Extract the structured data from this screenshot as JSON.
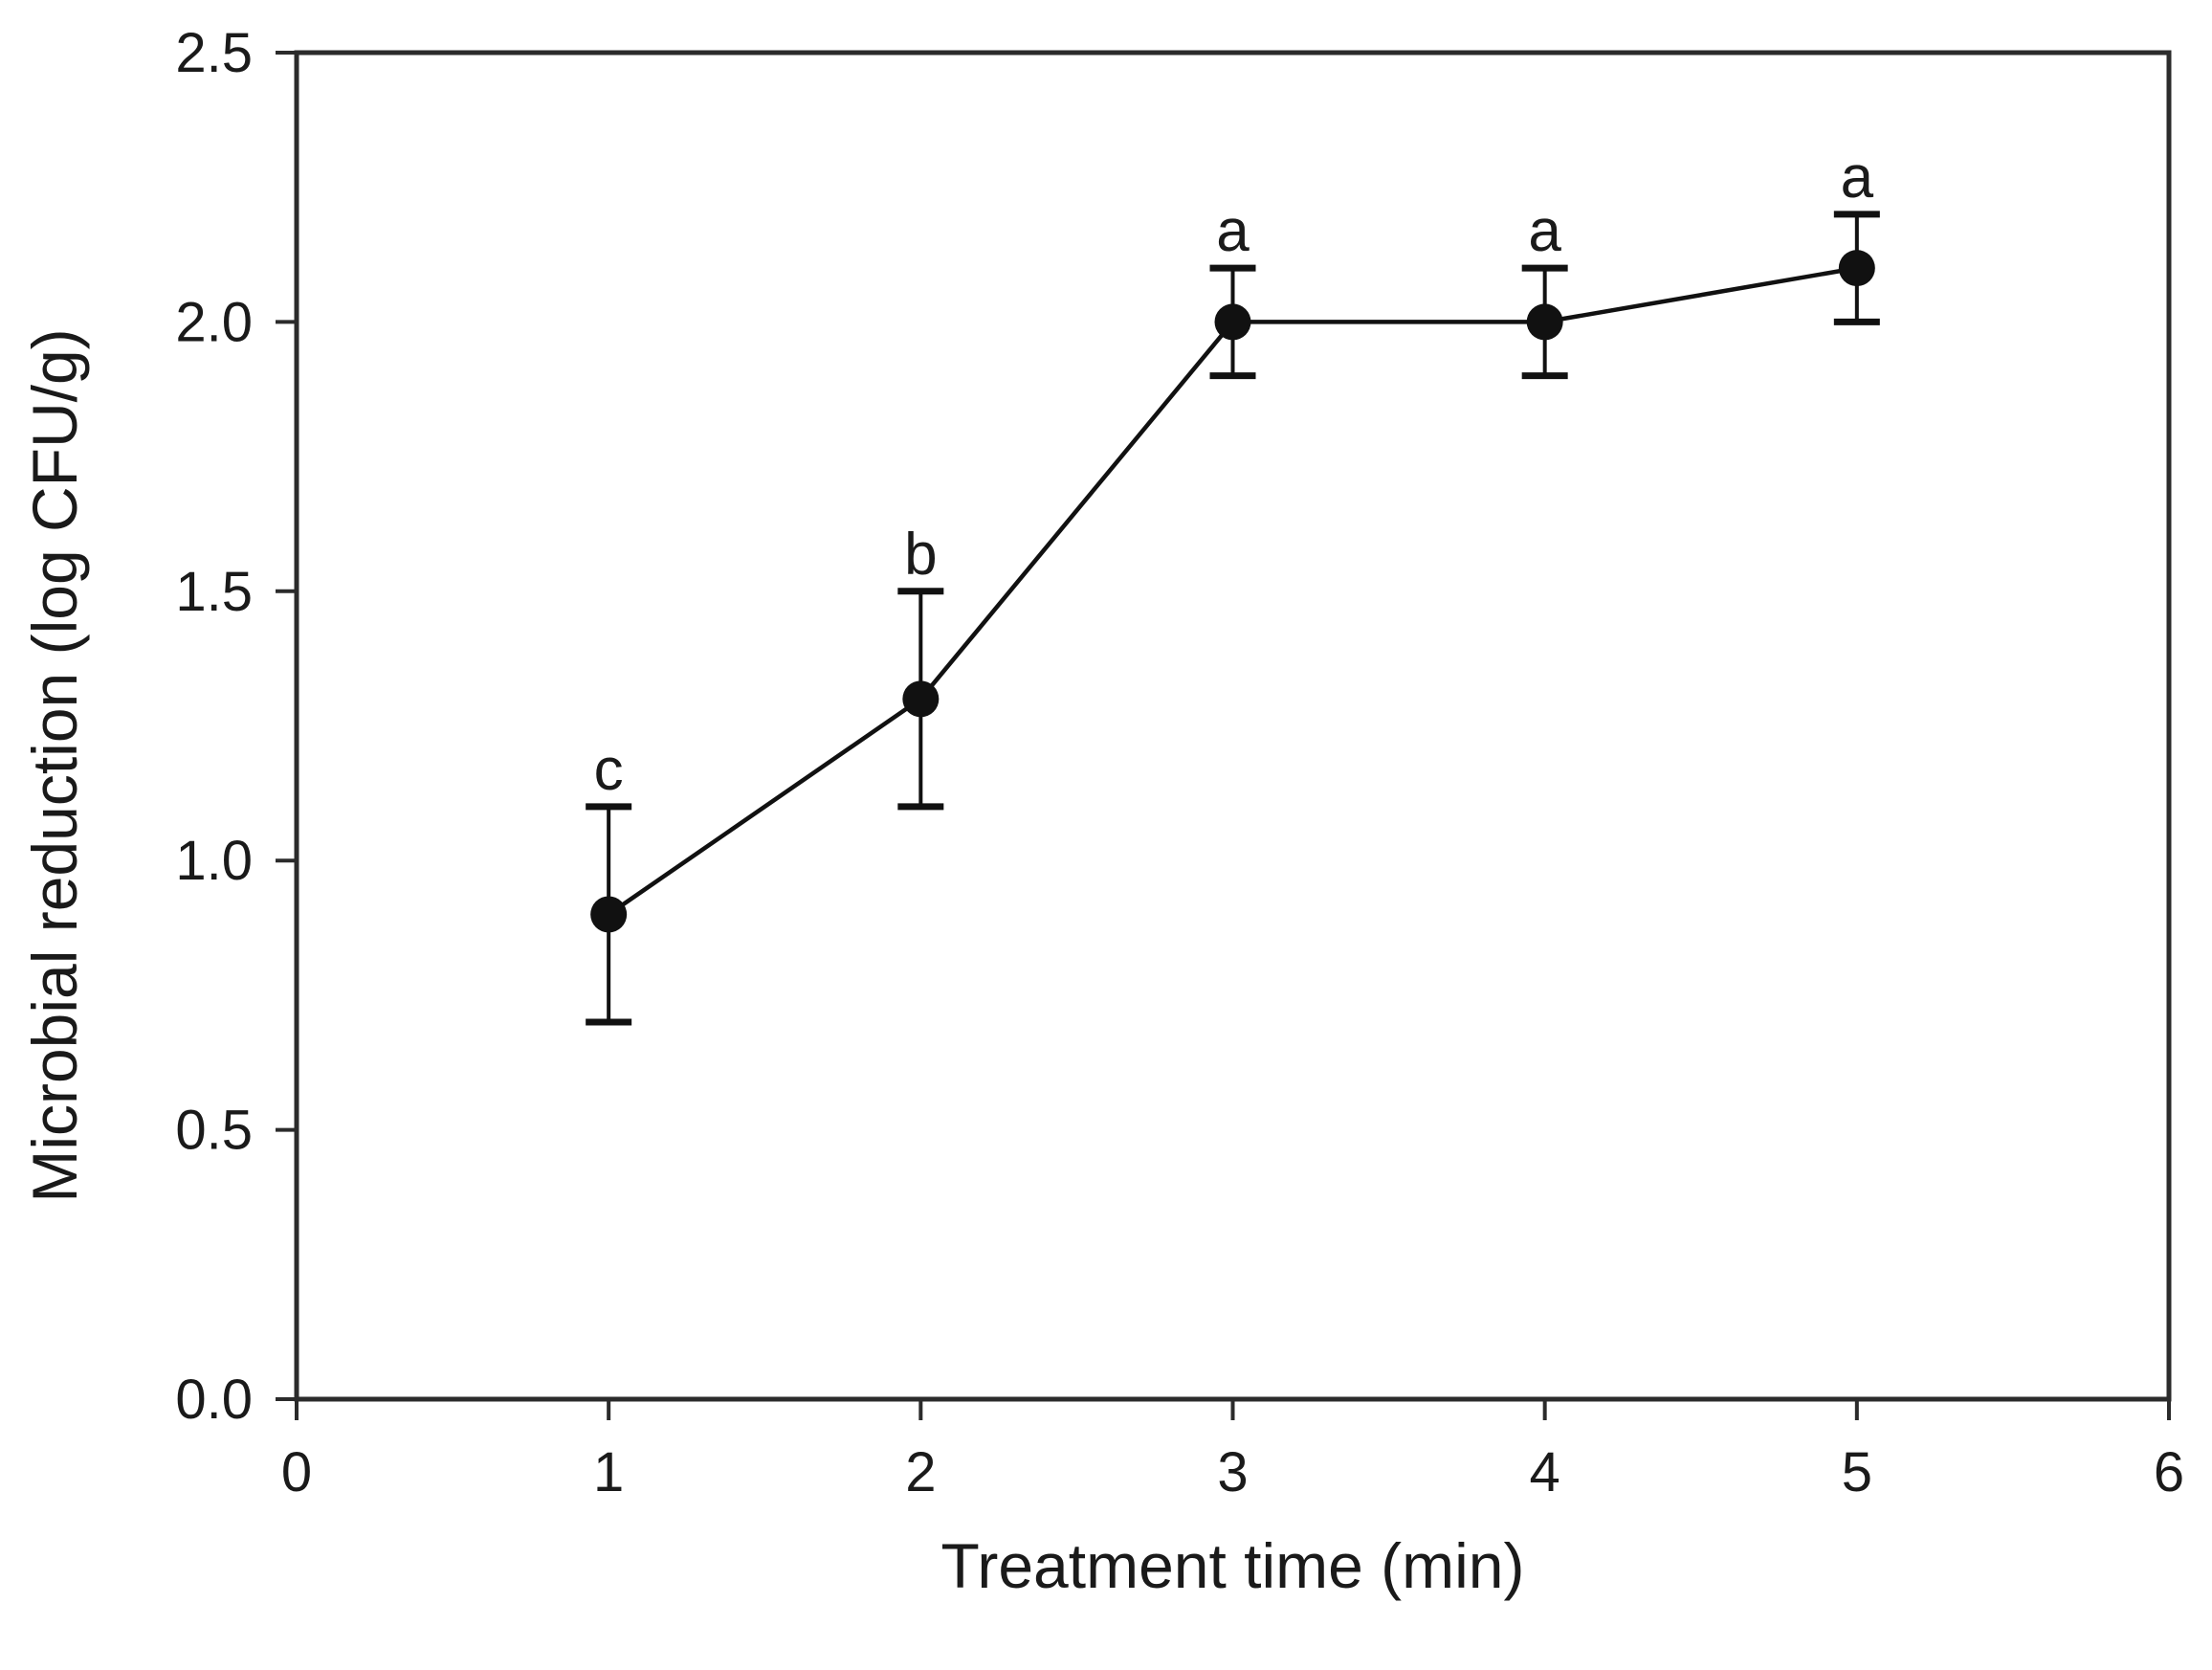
{
  "figure": {
    "background": "#ffffff",
    "axis_color": "#2b2b2b",
    "data_color": "#111111"
  },
  "chart_data": {
    "type": "line",
    "title": "",
    "xlabel": "Treatment time (min)",
    "ylabel": "Microbial reduction (log CFU/g)",
    "xlim": [
      0,
      6
    ],
    "ylim": [
      0,
      2.5
    ],
    "x_ticks": [
      0,
      1,
      2,
      3,
      4,
      5,
      6
    ],
    "y_ticks": [
      0,
      0.5,
      1,
      1.5,
      2,
      2.5
    ],
    "grid": false,
    "legend_position": "none",
    "series": [
      {
        "name": "microbial-reduction",
        "marker": "filled-circle",
        "x": [
          1,
          2,
          3,
          4,
          5
        ],
        "y": [
          0.9,
          1.3,
          2.0,
          2.0,
          2.1
        ],
        "y_err": [
          0.2,
          0.2,
          0.1,
          0.1,
          0.1
        ],
        "point_labels": [
          "c",
          "b",
          "a",
          "a",
          "a"
        ]
      }
    ]
  }
}
